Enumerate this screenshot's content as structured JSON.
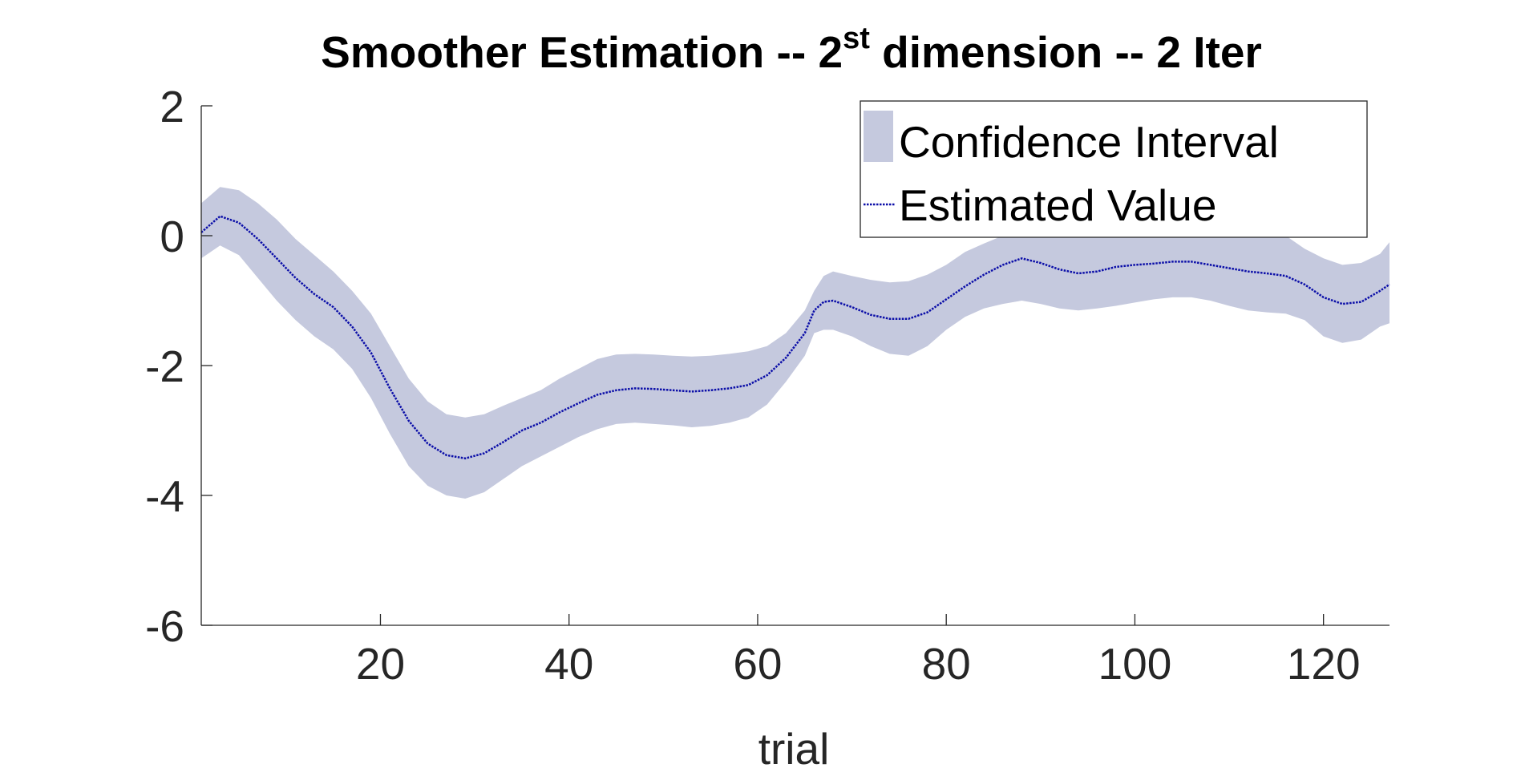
{
  "chart_data": {
    "type": "area",
    "title": "Smoother Estimation -- 2",
    "title_superscript": "st",
    "title_suffix": " dimension -- 2 Iter",
    "xlabel": "trial",
    "ylabel": "",
    "xlim": [
      1,
      127
    ],
    "ylim": [
      -6,
      2
    ],
    "xticks": [
      20,
      40,
      60,
      80,
      100,
      120
    ],
    "yticks": [
      -6,
      -4,
      -2,
      0,
      2
    ],
    "grid": false,
    "legend_placement": "top-right",
    "x": [
      1,
      3,
      5,
      7,
      9,
      11,
      13,
      15,
      17,
      19,
      21,
      23,
      25,
      27,
      29,
      31,
      33,
      35,
      37,
      39,
      41,
      43,
      45,
      47,
      49,
      51,
      53,
      55,
      57,
      59,
      61,
      63,
      65,
      66,
      67,
      68,
      70,
      72,
      74,
      76,
      78,
      80,
      82,
      84,
      86,
      88,
      90,
      92,
      94,
      96,
      98,
      100,
      102,
      104,
      106,
      108,
      110,
      112,
      114,
      116,
      118,
      120,
      122,
      124,
      126,
      127
    ],
    "series": [
      {
        "name": "Confidence Interval",
        "kind": "band",
        "color": "#c5c9de",
        "lower": [
          -0.35,
          -0.15,
          -0.3,
          -0.65,
          -1.0,
          -1.3,
          -1.55,
          -1.75,
          -2.05,
          -2.5,
          -3.05,
          -3.55,
          -3.85,
          -4.0,
          -4.05,
          -3.95,
          -3.75,
          -3.55,
          -3.4,
          -3.25,
          -3.1,
          -2.98,
          -2.9,
          -2.88,
          -2.9,
          -2.92,
          -2.95,
          -2.93,
          -2.88,
          -2.8,
          -2.6,
          -2.25,
          -1.85,
          -1.5,
          -1.45,
          -1.45,
          -1.55,
          -1.7,
          -1.82,
          -1.85,
          -1.7,
          -1.45,
          -1.25,
          -1.12,
          -1.05,
          -1.0,
          -1.05,
          -1.12,
          -1.15,
          -1.12,
          -1.08,
          -1.03,
          -0.98,
          -0.95,
          -0.95,
          -1.0,
          -1.08,
          -1.15,
          -1.18,
          -1.2,
          -1.3,
          -1.55,
          -1.65,
          -1.6,
          -1.4,
          -1.35
        ],
        "upper": [
          0.5,
          0.75,
          0.7,
          0.5,
          0.25,
          -0.05,
          -0.3,
          -0.55,
          -0.85,
          -1.2,
          -1.7,
          -2.2,
          -2.55,
          -2.75,
          -2.8,
          -2.75,
          -2.62,
          -2.5,
          -2.38,
          -2.2,
          -2.05,
          -1.9,
          -1.83,
          -1.82,
          -1.83,
          -1.85,
          -1.86,
          -1.85,
          -1.82,
          -1.78,
          -1.7,
          -1.5,
          -1.15,
          -0.85,
          -0.62,
          -0.55,
          -0.62,
          -0.68,
          -0.72,
          -0.7,
          -0.6,
          -0.45,
          -0.25,
          -0.12,
          0.0,
          0.2,
          0.25,
          0.25,
          0.35,
          0.45,
          0.5,
          0.52,
          0.55,
          0.55,
          0.45,
          0.3,
          0.25,
          0.2,
          0.2,
          0.0,
          -0.2,
          -0.35,
          -0.45,
          -0.42,
          -0.28,
          -0.1
        ]
      },
      {
        "name": "Estimated Value",
        "kind": "line",
        "color": "#0b0ea8",
        "values": [
          0.05,
          0.3,
          0.2,
          -0.05,
          -0.35,
          -0.65,
          -0.9,
          -1.1,
          -1.4,
          -1.8,
          -2.35,
          -2.85,
          -3.2,
          -3.38,
          -3.43,
          -3.35,
          -3.18,
          -3.0,
          -2.88,
          -2.72,
          -2.58,
          -2.45,
          -2.38,
          -2.35,
          -2.36,
          -2.38,
          -2.4,
          -2.38,
          -2.35,
          -2.3,
          -2.15,
          -1.88,
          -1.5,
          -1.15,
          -1.02,
          -1.0,
          -1.1,
          -1.22,
          -1.28,
          -1.28,
          -1.18,
          -0.98,
          -0.78,
          -0.6,
          -0.45,
          -0.35,
          -0.42,
          -0.52,
          -0.58,
          -0.55,
          -0.48,
          -0.45,
          -0.43,
          -0.4,
          -0.4,
          -0.45,
          -0.5,
          -0.55,
          -0.58,
          -0.62,
          -0.75,
          -0.95,
          -1.05,
          -1.02,
          -0.85,
          -0.75
        ]
      }
    ]
  }
}
